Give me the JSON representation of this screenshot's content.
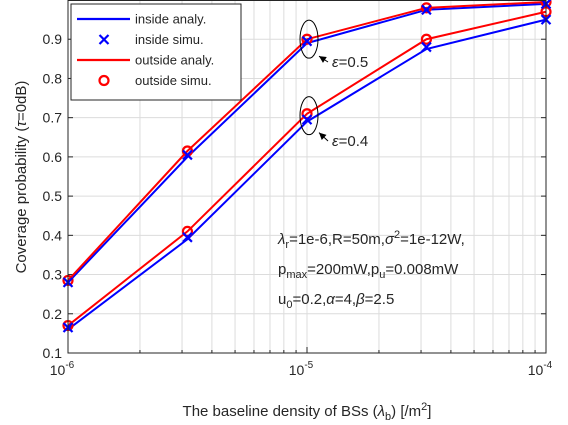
{
  "chart_data": {
    "type": "line",
    "x_scale": "log",
    "y_scale": "linear",
    "xlim": [
      1e-06,
      0.0001
    ],
    "ylim": [
      0.1,
      1.0
    ],
    "grid": true,
    "legend_position": "top-left",
    "x_tick_labels": [
      {
        "base": "10",
        "exp": "-6"
      },
      {
        "base": "10",
        "exp": "-5"
      },
      {
        "base": "10",
        "exp": "-4"
      }
    ],
    "y_tick_values": [
      0.1,
      0.2,
      0.3,
      0.4,
      0.5,
      0.6,
      0.7,
      0.8,
      0.9
    ],
    "y_tick_labels": [
      "0.1",
      "0.2",
      "0.3",
      "0.4",
      "0.5",
      "0.6",
      "0.7",
      "0.8",
      "0.9"
    ],
    "xlabel": {
      "pre": "The baseline density  of BSs (",
      "sym": "λ",
      "sub": "b",
      "mid": ") [/m",
      "sup": "2",
      "post": "]"
    },
    "ylabel": {
      "pre": "Coverage probability (",
      "sym": "τ",
      "post": "=0dB)"
    },
    "x": [
      1e-06,
      3.16e-06,
      1e-05,
      3.16e-05,
      0.0001
    ],
    "series": [
      {
        "name": "inside analy.",
        "group": "ε=0.5",
        "kind": "line",
        "color": "#0000ff",
        "values": [
          0.28,
          0.6,
          0.89,
          0.975,
          0.99
        ]
      },
      {
        "name": "inside simu.",
        "group": "ε=0.5",
        "kind": "marker-x",
        "color": "#0000ff",
        "values": [
          0.28,
          0.605,
          0.895,
          0.975,
          0.99
        ]
      },
      {
        "name": "outside analy.",
        "group": "ε=0.5",
        "kind": "line",
        "color": "#ff0000",
        "values": [
          0.285,
          0.615,
          0.9,
          0.98,
          0.995
        ]
      },
      {
        "name": "outside simu.",
        "group": "ε=0.5",
        "kind": "marker-o",
        "color": "#ff0000",
        "values": [
          0.285,
          0.615,
          0.9,
          0.98,
          0.995
        ]
      },
      {
        "name": "inside analy.",
        "group": "ε=0.4",
        "kind": "line",
        "color": "#0000ff",
        "values": [
          0.16,
          0.39,
          0.69,
          0.875,
          0.95
        ]
      },
      {
        "name": "inside simu.",
        "group": "ε=0.4",
        "kind": "marker-x",
        "color": "#0000ff",
        "values": [
          0.165,
          0.395,
          0.695,
          0.88,
          0.95
        ]
      },
      {
        "name": "outside analy.",
        "group": "ε=0.4",
        "kind": "line",
        "color": "#ff0000",
        "values": [
          0.17,
          0.41,
          0.71,
          0.9,
          0.97
        ]
      },
      {
        "name": "outside simu.",
        "group": "ε=0.4",
        "kind": "marker-o",
        "color": "#ff0000",
        "values": [
          0.17,
          0.41,
          0.71,
          0.9,
          0.97
        ]
      }
    ],
    "legend": [
      {
        "label": "inside analy.",
        "kind": "line",
        "color": "#0000ff"
      },
      {
        "label": "inside simu.",
        "kind": "marker-x",
        "color": "#0000ff"
      },
      {
        "label": "outside analy.",
        "kind": "line",
        "color": "#ff0000"
      },
      {
        "label": "outside simu.",
        "kind": "marker-o",
        "color": "#ff0000"
      }
    ],
    "annotations": [
      {
        "id": "eps05",
        "text": "=0.5",
        "sym": "ε",
        "target_x": 1e-05,
        "target_y": 0.895
      },
      {
        "id": "eps04",
        "text": "=0.4",
        "sym": "ε",
        "target_x": 1e-05,
        "target_y": 0.7
      }
    ],
    "params": {
      "line1": {
        "pre": "λ",
        "sub": "r",
        "text": "=1e-6,R=50m,",
        "sym": "σ",
        "sup": "2",
        "post": "=1e-12W,"
      },
      "line2": {
        "pre": "p",
        "sub1": "max",
        "mid": "=200mW,p",
        "sub2": "u",
        "post": "=0.008mW"
      },
      "line3": {
        "pre": "u",
        "sub": "0",
        "text": "=0.2,",
        "sym1": "α",
        "mid": "=4,",
        "sym2": "β",
        "post": "=2.5"
      }
    }
  }
}
